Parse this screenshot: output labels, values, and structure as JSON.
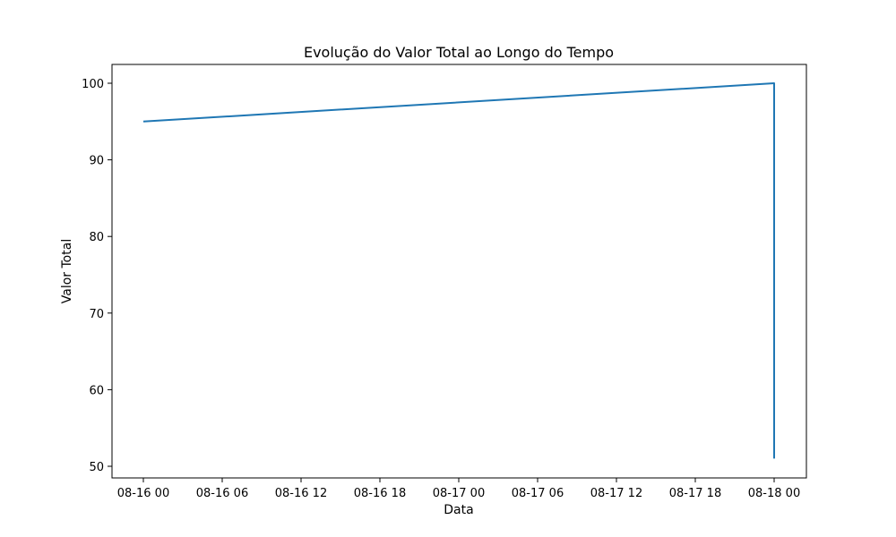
{
  "chart_data": {
    "type": "line",
    "title": "Evolução do Valor Total ao Longo do Tempo",
    "xlabel": "Data",
    "ylabel": "Valor Total",
    "x_ticks": [
      "08-16 00",
      "08-16 06",
      "08-16 12",
      "08-16 18",
      "08-17 00",
      "08-17 06",
      "08-17 12",
      "08-17 18",
      "08-18 00"
    ],
    "y_ticks": [
      50,
      60,
      70,
      80,
      90,
      100
    ],
    "grid": false,
    "series": [
      {
        "color": "#1f77b4",
        "points": [
          {
            "x": "2024-08-16 00:00",
            "y": 95
          },
          {
            "x": "2024-08-18 00:00",
            "y": 100
          },
          {
            "x": "2024-08-18 00:00",
            "y": 51
          }
        ]
      }
    ]
  }
}
